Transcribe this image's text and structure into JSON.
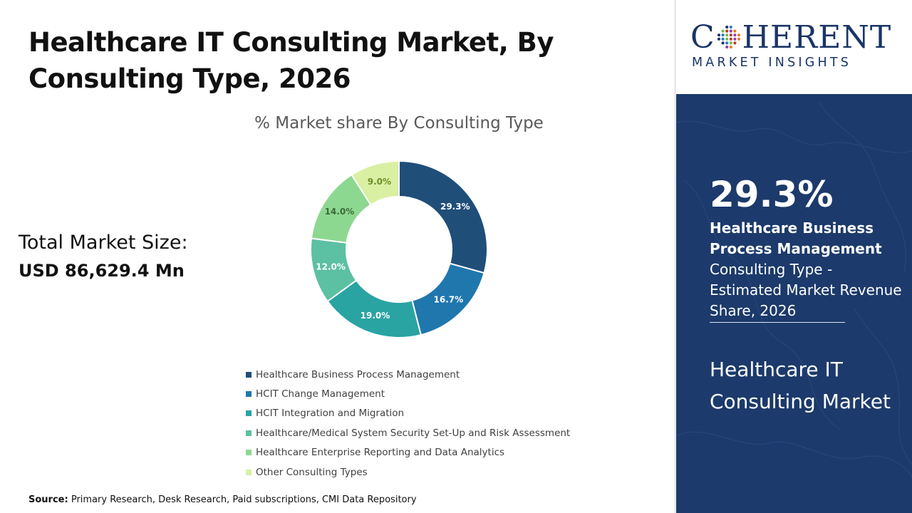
{
  "header": {
    "title": "Healthcare IT Consulting Market, By Consulting Type, 2026"
  },
  "summary": {
    "total_label": "Total Market Size:",
    "total_value": "USD 86,629.4 Mn"
  },
  "chart_data": {
    "type": "pie",
    "title": "% Market share By Consulting Type",
    "donut": true,
    "legend_position": "bottom",
    "categories": [
      "Healthcare Business Process Management",
      "HCIT Change Management",
      "HCIT Integration and Migration",
      "Healthcare/Medical System Security Set-Up and Risk Assessment",
      "Healthcare Enterprise Reporting and Data Analytics",
      "Other Consulting Types"
    ],
    "values": [
      29.3,
      16.7,
      19.0,
      12.0,
      14.0,
      9.0
    ],
    "value_labels": [
      "29.3%",
      "16.7%",
      "19.0%",
      "12.0%",
      "14.0%",
      "9.0%"
    ],
    "colors": [
      "#1f4e79",
      "#1f77ae",
      "#2aa3a3",
      "#5cc0a3",
      "#8dd891",
      "#d9f0a3"
    ]
  },
  "footer": {
    "source_label": "Source:",
    "source_text": "Primary Research, Desk Research, Paid subscriptions, CMI Data Repository"
  },
  "brand": {
    "logo_left": "C",
    "logo_right": "HERENT",
    "logo_sub": "MARKET INSIGHTS",
    "color": "#1a3567",
    "logo_icon": "globe-dots-icon"
  },
  "highlight": {
    "value": "29.3%",
    "segment": "Healthcare Business Process Management",
    "description": "Consulting Type - Estimated Market Revenue Share, 2026",
    "market": "Healthcare IT Consulting Market",
    "panel_color": "#1c3a6b"
  }
}
